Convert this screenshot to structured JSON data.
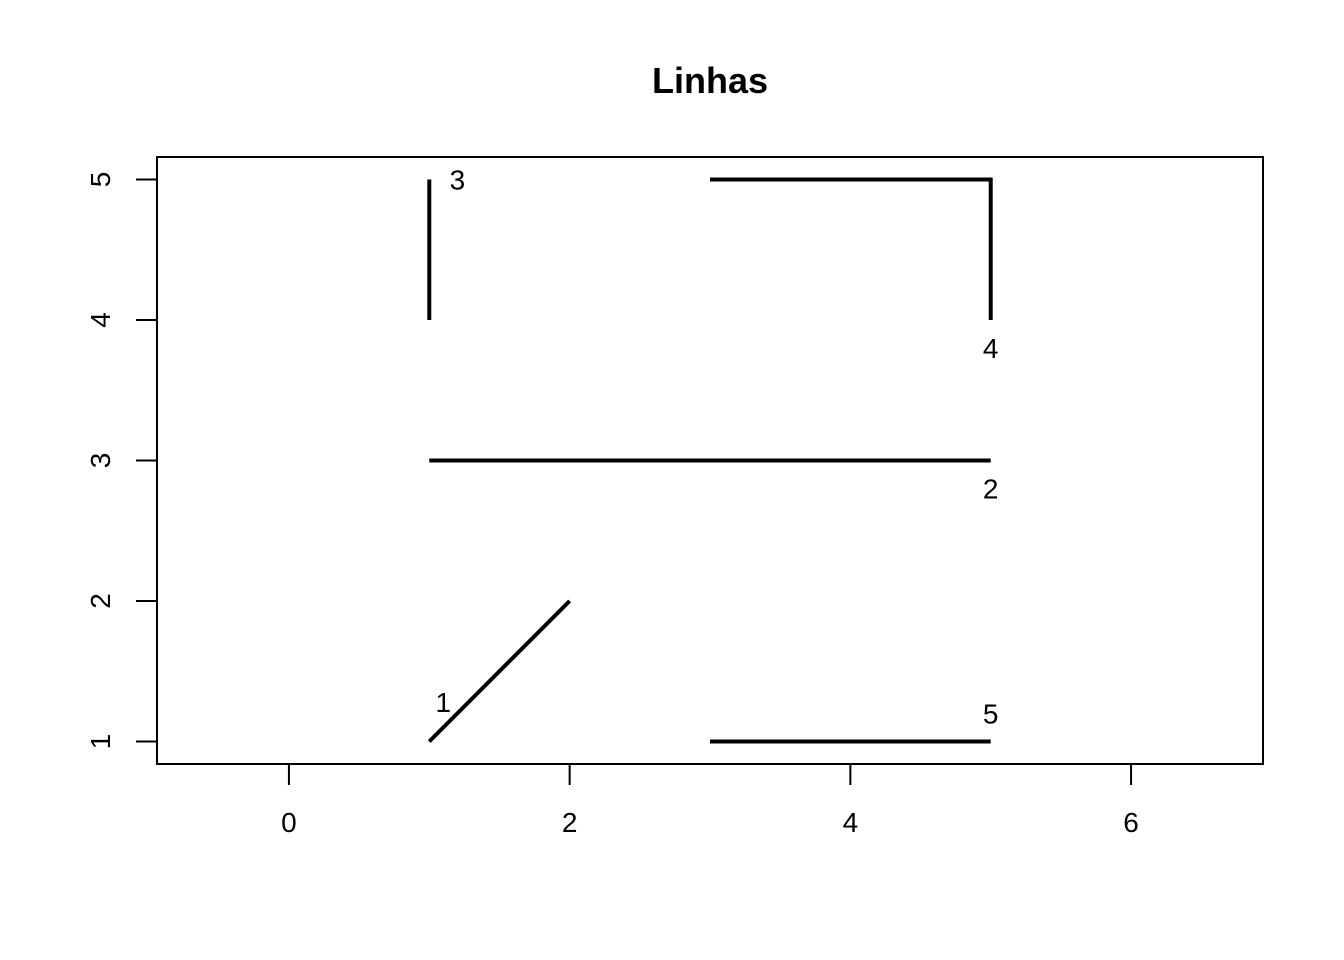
{
  "chart_data": {
    "type": "line",
    "title": "Linhas",
    "xlabel": "",
    "ylabel": "",
    "xlim": [
      -0.94,
      6.94
    ],
    "ylim": [
      0.84,
      5.16
    ],
    "x_ticks": [
      0,
      2,
      4,
      6
    ],
    "y_ticks": [
      1,
      2,
      3,
      4,
      5
    ],
    "grid": false,
    "series": [
      {
        "label": "1",
        "points": [
          [
            1,
            1
          ],
          [
            2,
            2
          ]
        ],
        "label_pos": [
          1.1,
          1.28
        ]
      },
      {
        "label": "2",
        "points": [
          [
            1,
            3
          ],
          [
            5,
            3
          ]
        ],
        "label_pos": [
          5,
          2.8
        ]
      },
      {
        "label": "3",
        "points": [
          [
            1,
            4
          ],
          [
            1,
            5
          ]
        ],
        "label_pos": [
          1.2,
          5
        ]
      },
      {
        "label": "4",
        "points": [
          [
            3,
            5
          ],
          [
            5,
            5
          ],
          [
            5,
            4
          ]
        ],
        "label_pos": [
          5,
          3.8
        ]
      },
      {
        "label": "5",
        "points": [
          [
            3,
            1
          ],
          [
            5,
            1
          ]
        ],
        "label_pos": [
          5,
          1.2
        ]
      }
    ]
  }
}
